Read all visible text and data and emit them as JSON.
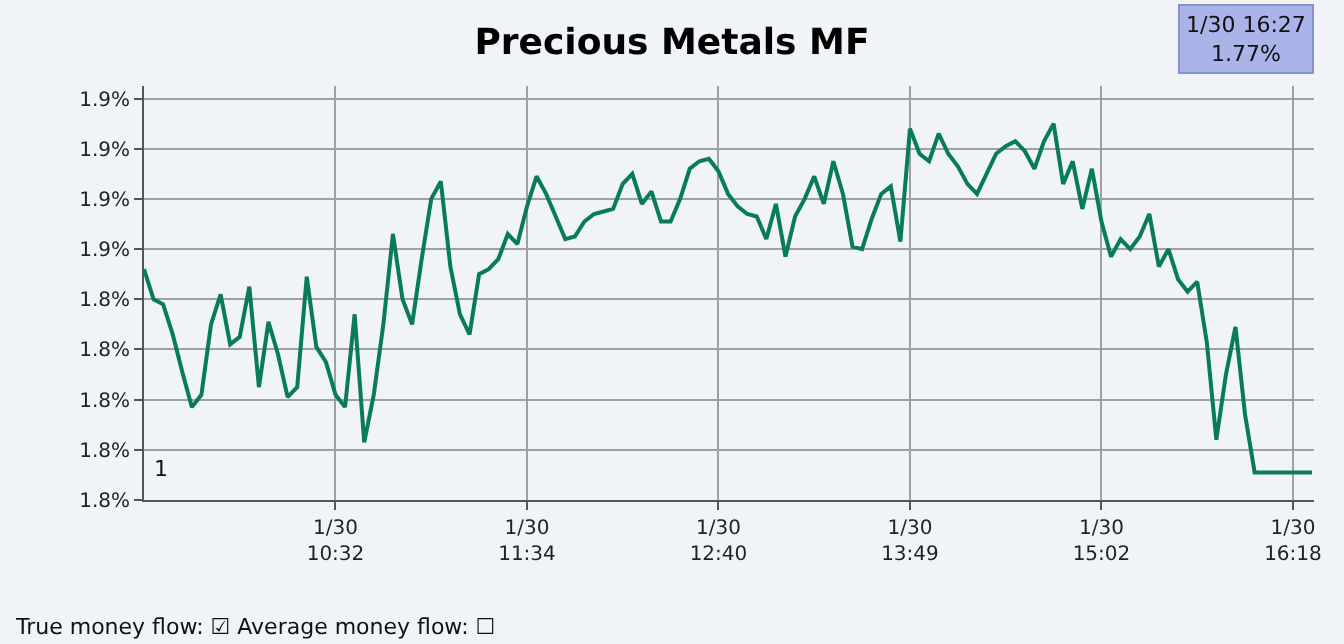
{
  "chart_data": {
    "type": "line",
    "title": "Precious Metals MF",
    "categories": [
      null,
      null,
      null,
      null,
      null,
      null,
      null,
      null,
      null,
      null,
      null,
      null,
      null,
      null,
      null,
      null,
      null,
      null,
      null,
      null,
      "1/30\n10:32",
      null,
      null,
      null,
      null,
      null,
      null,
      null,
      null,
      null,
      null,
      null,
      null,
      null,
      null,
      null,
      null,
      null,
      null,
      null,
      "1/30\n11:34",
      null,
      null,
      null,
      null,
      null,
      null,
      null,
      null,
      null,
      null,
      null,
      null,
      null,
      null,
      null,
      null,
      null,
      null,
      null,
      "1/30\n12:40",
      null,
      null,
      null,
      null,
      null,
      null,
      null,
      null,
      null,
      null,
      null,
      null,
      null,
      null,
      null,
      null,
      null,
      null,
      null,
      "1/30\n13:49",
      null,
      null,
      null,
      null,
      null,
      null,
      null,
      null,
      null,
      null,
      null,
      null,
      null,
      null,
      null,
      null,
      null,
      null,
      null,
      "1/30\n15:02",
      null,
      null,
      null,
      null,
      null,
      null,
      null,
      null,
      null,
      null,
      null,
      null,
      null,
      null,
      null,
      null,
      null,
      null,
      null,
      "1/30\n16:18",
      null,
      null
    ],
    "series": [
      {
        "color": "#087c5a",
        "values": [
          1.852,
          1.84,
          1.838,
          1.826,
          1.811,
          1.797,
          1.802,
          1.83,
          1.842,
          1.822,
          1.825,
          1.845,
          1.805,
          1.831,
          1.818,
          1.801,
          1.805,
          1.849,
          1.821,
          1.815,
          1.802,
          1.797,
          1.834,
          1.783,
          1.802,
          1.83,
          1.866,
          1.84,
          1.83,
          1.856,
          1.88,
          1.887,
          1.853,
          1.834,
          1.826,
          1.85,
          1.852,
          1.856,
          1.866,
          1.862,
          1.877,
          1.889,
          1.882,
          1.873,
          1.864,
          1.865,
          1.871,
          1.874,
          1.875,
          1.876,
          1.886,
          1.89,
          1.878,
          1.883,
          1.871,
          1.871,
          1.88,
          1.892,
          1.895,
          1.896,
          1.891,
          1.882,
          1.877,
          1.874,
          1.873,
          1.864,
          1.878,
          1.857,
          1.873,
          1.88,
          1.889,
          1.878,
          1.895,
          1.882,
          1.861,
          1.86,
          1.872,
          1.882,
          1.885,
          1.863,
          1.908,
          1.898,
          1.895,
          1.906,
          1.898,
          1.893,
          1.886,
          1.882,
          1.89,
          1.898,
          1.901,
          1.903,
          1.899,
          1.892,
          1.903,
          1.91,
          1.886,
          1.895,
          1.876,
          1.892,
          1.871,
          1.857,
          1.864,
          1.86,
          1.865,
          1.874,
          1.853,
          1.86,
          1.848,
          1.843,
          1.847,
          1.823,
          1.784,
          1.81,
          1.829,
          1.794,
          1.771,
          1.771,
          1.771,
          1.771,
          1.771,
          1.771,
          1.771
        ]
      }
    ],
    "ylim": [
      1.76,
      1.925
    ],
    "yticks": [
      {
        "value": 1.76,
        "label": "1.8%"
      },
      {
        "value": 1.78,
        "label": "1.8%"
      },
      {
        "value": 1.8,
        "label": "1.8%"
      },
      {
        "value": 1.82,
        "label": "1.8%"
      },
      {
        "value": 1.84,
        "label": "1.8%"
      },
      {
        "value": 1.86,
        "label": "1.9%"
      },
      {
        "value": 1.88,
        "label": "1.9%"
      },
      {
        "value": 1.9,
        "label": "1.9%"
      },
      {
        "value": 1.92,
        "label": "1.9%"
      }
    ],
    "grid": true,
    "marker": "none",
    "line_style": "solid",
    "annotations": [
      "1/30 16:27\n1.77%",
      "1",
      "True money flow: ☑ Average money flow: ☐"
    ]
  }
}
